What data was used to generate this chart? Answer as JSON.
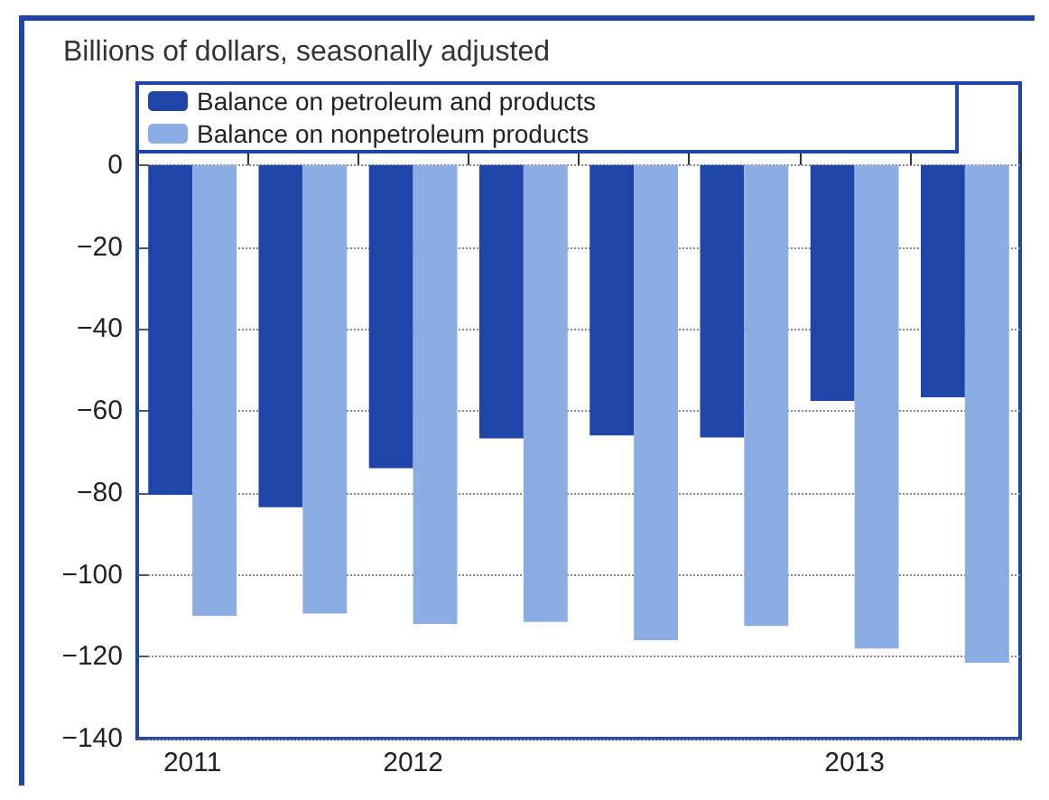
{
  "chart_data": {
    "type": "bar",
    "ylabel": "Billions of dollars, seasonally adjusted",
    "categories": [
      "2011",
      null,
      "2012",
      null,
      null,
      null,
      "2013",
      null
    ],
    "series": [
      {
        "name": "Balance on petroleum and products",
        "color": "#1f45a8",
        "values": [
          -80.5,
          -83.5,
          -74,
          -66.7,
          -66,
          -66.5,
          -57.6,
          -56.7
        ]
      },
      {
        "name": "Balance on nonpetroleum products",
        "color": "#8badE3",
        "values": [
          -110,
          -109.5,
          -112,
          -111.5,
          -116,
          -112.5,
          -118,
          -121.5
        ]
      }
    ],
    "ylim": [
      -140,
      20
    ],
    "yticks": [
      0,
      -20,
      -40,
      -60,
      -80,
      -100,
      -120,
      -140
    ],
    "grid": "y",
    "legend": "top left"
  }
}
